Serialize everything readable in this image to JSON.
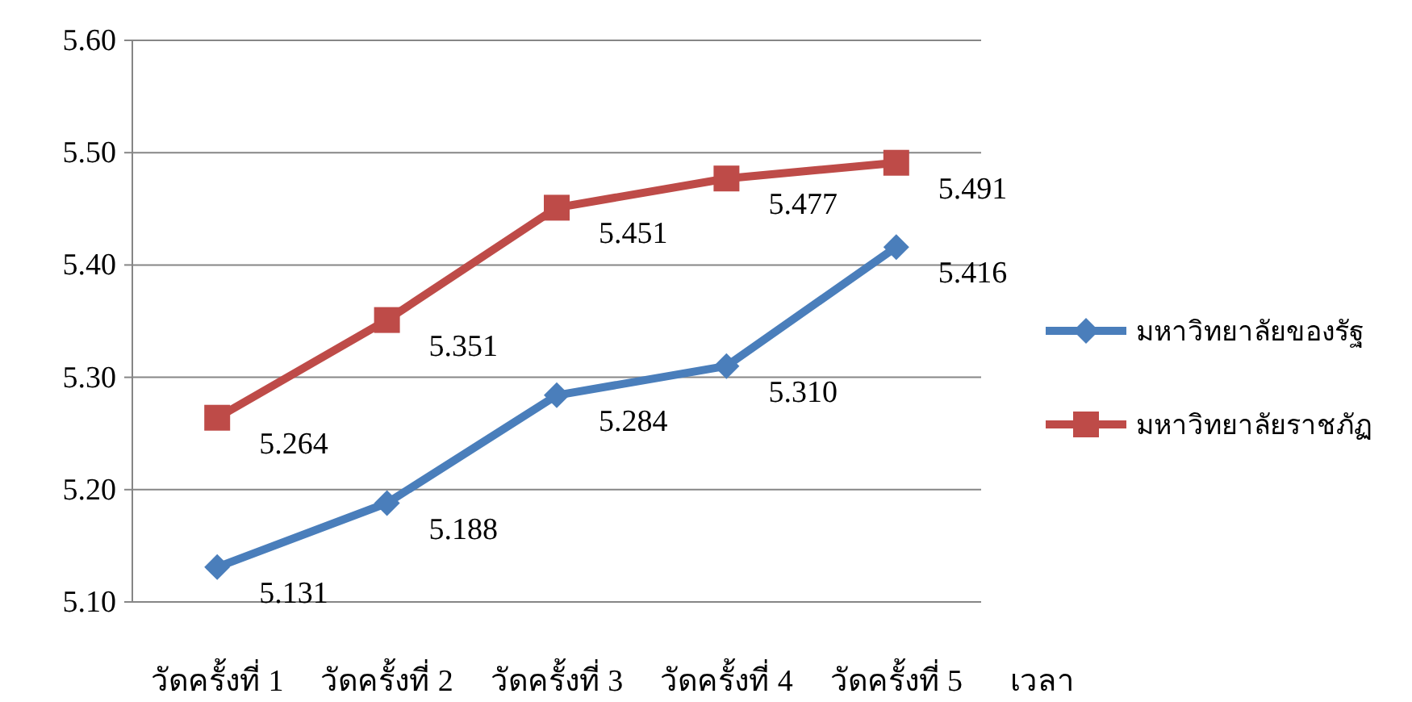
{
  "chart_data": {
    "type": "line",
    "xlabel": "เวลา",
    "categories": [
      "วัดครั้งที่ 1",
      "วัดครั้งที่ 2",
      "วัดครั้งที่ 3",
      "วัดครั้งที่ 4",
      "วัดครั้งที่ 5"
    ],
    "series": [
      {
        "name": "มหาวิทยาลัยของรัฐ",
        "color": "#4a7ebb",
        "marker": "diamond",
        "values": [
          5.131,
          5.188,
          5.284,
          5.31,
          5.416
        ],
        "value_labels": [
          "5.131",
          "5.188",
          "5.284",
          "5.310",
          "5.416"
        ]
      },
      {
        "name": "มหาวิทยาลัยราชภัฏ",
        "color": "#be4b48",
        "marker": "square",
        "values": [
          5.264,
          5.351,
          5.451,
          5.477,
          5.491
        ],
        "value_labels": [
          "5.264",
          "5.351",
          "5.451",
          "5.477",
          "5.491"
        ]
      }
    ],
    "ylim": [
      5.1,
      5.6
    ],
    "yticks": [
      {
        "value": 5.1,
        "label": "5.10"
      },
      {
        "value": 5.2,
        "label": "5.20"
      },
      {
        "value": 5.3,
        "label": "5.30"
      },
      {
        "value": 5.4,
        "label": "5.40"
      },
      {
        "value": 5.5,
        "label": "5.50"
      },
      {
        "value": 5.6,
        "label": "5.60"
      }
    ],
    "grid": "y",
    "legend": "right",
    "line_style": "solid"
  }
}
